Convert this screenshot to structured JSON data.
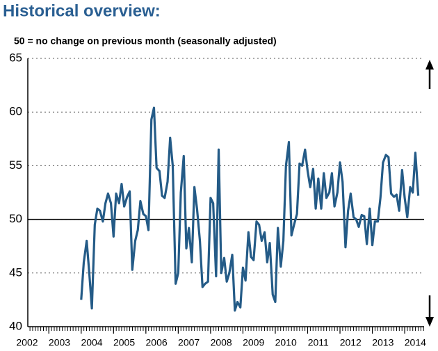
{
  "chart_data": {
    "type": "line",
    "title": "Historical overview:",
    "subtitle": "50 = no change on previous month (seasonally adjusted)",
    "x": [
      2004,
      2004.08,
      2004.17,
      2004.25,
      2004.33,
      2004.42,
      2004.5,
      2004.58,
      2004.67,
      2004.75,
      2004.83,
      2004.92,
      2005,
      2005.08,
      2005.17,
      2005.25,
      2005.33,
      2005.42,
      2005.5,
      2005.58,
      2005.67,
      2005.75,
      2005.83,
      2005.92,
      2006,
      2006.08,
      2006.17,
      2006.25,
      2006.33,
      2006.42,
      2006.5,
      2006.58,
      2006.67,
      2006.75,
      2006.83,
      2006.92,
      2007,
      2007.08,
      2007.17,
      2007.25,
      2007.33,
      2007.42,
      2007.5,
      2007.58,
      2007.67,
      2007.75,
      2007.83,
      2007.92,
      2008,
      2008.08,
      2008.17,
      2008.25,
      2008.33,
      2008.42,
      2008.5,
      2008.58,
      2008.67,
      2008.75,
      2008.83,
      2008.92,
      2009,
      2009.08,
      2009.17,
      2009.25,
      2009.33,
      2009.42,
      2009.5,
      2009.58,
      2009.67,
      2009.75,
      2009.83,
      2009.92,
      2010,
      2010.08,
      2010.17,
      2010.25,
      2010.33,
      2010.42,
      2010.5,
      2010.58,
      2010.67,
      2010.75,
      2010.83,
      2010.92,
      2011,
      2011.08,
      2011.17,
      2011.25,
      2011.33,
      2011.42,
      2011.5,
      2011.58,
      2011.67,
      2011.75,
      2011.83,
      2011.92,
      2012,
      2012.08,
      2012.17,
      2012.25,
      2012.33,
      2012.42,
      2012.5,
      2012.58,
      2012.67,
      2012.75,
      2012.83,
      2012.92,
      2013,
      2013.08,
      2013.17,
      2013.25,
      2013.33,
      2013.42,
      2013.5,
      2013.58,
      2013.67,
      2013.75,
      2013.83,
      2013.92,
      2014,
      2014.08,
      2014.17,
      2014.25,
      2014.33,
      2014.42
    ],
    "series": [
      {
        "color": "#245b87",
        "values": [
          42.5,
          46,
          48,
          45,
          41.7,
          49.5,
          51,
          50.8,
          49.8,
          51.5,
          52.4,
          51.5,
          48.4,
          52.4,
          51.5,
          53.3,
          51.2,
          52.1,
          52.6,
          45.3,
          48,
          49,
          51.7,
          50.5,
          50.3,
          49,
          59.3,
          60.4,
          54.8,
          54.5,
          52.2,
          52,
          53.5,
          57.6,
          55,
          44,
          45,
          52.5,
          55.9,
          47.3,
          49.2,
          46,
          53,
          51,
          48,
          43.7,
          44,
          44.2,
          52,
          51.5,
          44.7,
          56.5,
          45,
          46.4,
          44.2,
          45,
          46.7,
          41.5,
          42.3,
          41.8,
          45.5,
          44.3,
          48.8,
          46.5,
          46.2,
          49.8,
          49.5,
          48,
          48.8,
          46,
          47.8,
          43,
          42.3,
          49.2,
          45.6,
          48,
          55,
          57.2,
          48.5,
          49.5,
          50.5,
          55.2,
          55,
          56.5,
          54.5,
          53,
          54.7,
          51,
          53.8,
          51,
          54.3,
          52,
          52.5,
          54.3,
          51.2,
          52.5,
          55.3,
          53.5,
          47.4,
          50.8,
          52.4,
          50.2,
          50,
          49.3,
          50.4,
          50.3,
          47.7,
          51,
          47.6,
          49.8,
          49.8,
          52,
          55.3,
          56,
          55.8,
          52.4,
          52.1,
          52.3,
          50.8,
          54.6,
          52,
          50.2,
          53,
          52.5,
          56.2,
          52.2
        ]
      }
    ],
    "xlim": [
      2002.35,
      2014.6
    ],
    "xticks": [
      2002,
      2003,
      2004,
      2005,
      2006,
      2007,
      2008,
      2009,
      2010,
      2011,
      2012,
      2013,
      2014
    ],
    "ylim": [
      40,
      65
    ],
    "yticks": [
      40,
      45,
      50,
      55,
      60,
      65
    ],
    "hline": 50,
    "grid": true
  }
}
